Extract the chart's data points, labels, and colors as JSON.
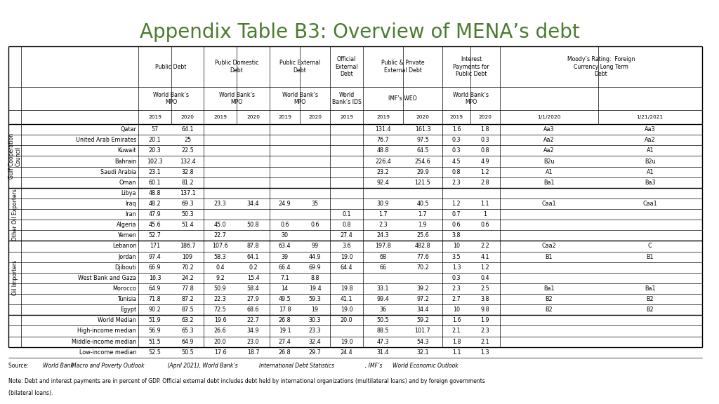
{
  "title": "Appendix Table B3: Overview of MENA’s debt",
  "title_color": "#4a7c2f",
  "background_color": "#ffffff",
  "groups": [
    {
      "label": "Gulf Cooperation\nCouncil",
      "rows": [
        {
          "country": "Qatar",
          "pd19": "57",
          "pd20": "64.1",
          "pdd19": "",
          "pdd20": "",
          "ped19": "",
          "ped20": "",
          "oed19": "",
          "ppe19": "131.4",
          "ppe20": "161.3",
          "ip19": "1.6",
          "ip20": "1.8",
          "mr1": "Aa3",
          "mr2": "Aa3"
        },
        {
          "country": "United Arab Emirates",
          "pd19": "20.1",
          "pd20": "25",
          "pdd19": "",
          "pdd20": "",
          "ped19": "",
          "ped20": "",
          "oed19": "",
          "ppe19": "76.7",
          "ppe20": "97.5",
          "ip19": "0.3",
          "ip20": "0.3",
          "mr1": "Aa2",
          "mr2": "Aa2"
        },
        {
          "country": "Kuwait",
          "pd19": "20.3",
          "pd20": "22.5",
          "pdd19": "",
          "pdd20": "",
          "ped19": "",
          "ped20": "",
          "oed19": "",
          "ppe19": "48.8",
          "ppe20": "64.5",
          "ip19": "0.3",
          "ip20": "0.8",
          "mr1": "Aa2",
          "mr2": "A1"
        },
        {
          "country": "Bahrain",
          "pd19": "102.3",
          "pd20": "132.4",
          "pdd19": "",
          "pdd20": "",
          "ped19": "",
          "ped20": "",
          "oed19": "",
          "ppe19": "226.4",
          "ppe20": "254.6",
          "ip19": "4.5",
          "ip20": "4.9",
          "mr1": "B2u",
          "mr2": "B2u"
        },
        {
          "country": "Saudi Arabia",
          "pd19": "23.1",
          "pd20": "32.8",
          "pdd19": "",
          "pdd20": "",
          "ped19": "",
          "ped20": "",
          "oed19": "",
          "ppe19": "23.2",
          "ppe20": "29.9",
          "ip19": "0.8",
          "ip20": "1.2",
          "mr1": "A1",
          "mr2": "A1"
        },
        {
          "country": "Oman",
          "pd19": "60.1",
          "pd20": "81.2",
          "pdd19": "",
          "pdd20": "",
          "ped19": "",
          "ped20": "",
          "oed19": "",
          "ppe19": "92.4",
          "ppe20": "121.5",
          "ip19": "2.3",
          "ip20": "2.8",
          "mr1": "Ba1",
          "mr2": "Ba3"
        }
      ]
    },
    {
      "label": "Other Oil Exporters",
      "rows": [
        {
          "country": "Libya",
          "pd19": "48.8",
          "pd20": "137.1",
          "pdd19": "",
          "pdd20": "",
          "ped19": "",
          "ped20": "",
          "oed19": "",
          "ppe19": "",
          "ppe20": "",
          "ip19": "",
          "ip20": "",
          "mr1": "",
          "mr2": ""
        },
        {
          "country": "Iraq",
          "pd19": "48.2",
          "pd20": "69.3",
          "pdd19": "23.3",
          "pdd20": "34.4",
          "ped19": "24.9",
          "ped20": "35",
          "oed19": "",
          "ppe19": "30.9",
          "ppe20": "40.5",
          "ip19": "1.2",
          "ip20": "1.1",
          "mr1": "Caa1",
          "mr2": "Caa1"
        },
        {
          "country": "Iran",
          "pd19": "47.9",
          "pd20": "50.3",
          "pdd19": "",
          "pdd20": "",
          "ped19": "",
          "ped20": "",
          "oed19": "0.1",
          "ppe19": "1.7",
          "ppe20": "1.7",
          "ip19": "0.7",
          "ip20": "1",
          "mr1": "",
          "mr2": ""
        },
        {
          "country": "Algeria",
          "pd19": "45.6",
          "pd20": "51.4",
          "pdd19": "45.0",
          "pdd20": "50.8",
          "ped19": "0.6",
          "ped20": "0.6",
          "oed19": "0.8",
          "ppe19": "2.3",
          "ppe20": "1.9",
          "ip19": "0.6",
          "ip20": "0.6",
          "mr1": "",
          "mr2": ""
        },
        {
          "country": "Yemen",
          "pd19": "52.7",
          "pd20": "",
          "pdd19": "22.7",
          "pdd20": "",
          "ped19": "30",
          "ped20": "",
          "oed19": "27.4",
          "ppe19": "24.3",
          "ppe20": "25.6",
          "ip19": "3.8",
          "ip20": "",
          "mr1": "",
          "mr2": ""
        }
      ]
    },
    {
      "label": "Oil Importers",
      "rows": [
        {
          "country": "Lebanon",
          "pd19": "171",
          "pd20": "186.7",
          "pdd19": "107.6",
          "pdd20": "87.8",
          "ped19": "63.4",
          "ped20": "99",
          "oed19": "3.6",
          "ppe19": "197.8",
          "ppe20": "482.8",
          "ip19": "10",
          "ip20": "2.2",
          "mr1": "Caa2",
          "mr2": "C"
        },
        {
          "country": "Jordan",
          "pd19": "97.4",
          "pd20": "109",
          "pdd19": "58.3",
          "pdd20": "64.1",
          "ped19": "39",
          "ped20": "44.9",
          "oed19": "19.0",
          "ppe19": "68",
          "ppe20": "77.6",
          "ip19": "3.5",
          "ip20": "4.1",
          "mr1": "B1",
          "mr2": "B1"
        },
        {
          "country": "Djibouti",
          "pd19": "66.9",
          "pd20": "70.2",
          "pdd19": "0.4",
          "pdd20": "0.2",
          "ped19": "66.4",
          "ped20": "69.9",
          "oed19": "64.4",
          "ppe19": "66",
          "ppe20": "70.2",
          "ip19": "1.3",
          "ip20": "1.2",
          "mr1": "",
          "mr2": ""
        },
        {
          "country": "West Bank and Gaza",
          "pd19": "16.3",
          "pd20": "24.2",
          "pdd19": "9.2",
          "pdd20": "15.4",
          "ped19": "7.1",
          "ped20": "8.8",
          "oed19": "",
          "ppe19": "",
          "ppe20": "",
          "ip19": "0.3",
          "ip20": "0.4",
          "mr1": "",
          "mr2": ""
        },
        {
          "country": "Morocco",
          "pd19": "64.9",
          "pd20": "77.8",
          "pdd19": "50.9",
          "pdd20": "58.4",
          "ped19": "14",
          "ped20": "19.4",
          "oed19": "19.8",
          "ppe19": "33.1",
          "ppe20": "39.2",
          "ip19": "2.3",
          "ip20": "2.5",
          "mr1": "Ba1",
          "mr2": "Ba1"
        },
        {
          "country": "Tunisia",
          "pd19": "71.8",
          "pd20": "87.2",
          "pdd19": "22.3",
          "pdd20": "27.9",
          "ped19": "49.5",
          "ped20": "59.3",
          "oed19": "41.1",
          "ppe19": "99.4",
          "ppe20": "97.2",
          "ip19": "2.7",
          "ip20": "3.8",
          "mr1": "B2",
          "mr2": "B2"
        },
        {
          "country": "Egypt",
          "pd19": "90.2",
          "pd20": "87.5",
          "pdd19": "72.5",
          "pdd20": "68.6",
          "ped19": "17.8",
          "ped20": "19",
          "oed19": "19.0",
          "ppe19": "36",
          "ppe20": "34.4",
          "ip19": "10",
          "ip20": "9.8",
          "mr1": "B2",
          "mr2": "B2"
        }
      ]
    },
    {
      "label": "",
      "rows": [
        {
          "country": "World Median",
          "pd19": "51.9",
          "pd20": "63.2",
          "pdd19": "19.6",
          "pdd20": "22.7",
          "ped19": "26.8",
          "ped20": "30.3",
          "oed19": "20.0",
          "ppe19": "50.5",
          "ppe20": "59.2",
          "ip19": "1.6",
          "ip20": "1.9",
          "mr1": "",
          "mr2": ""
        },
        {
          "country": "High-income median",
          "pd19": "56.9",
          "pd20": "65.3",
          "pdd19": "26.6",
          "pdd20": "34.9",
          "ped19": "19.1",
          "ped20": "23.3",
          "oed19": "",
          "ppe19": "88.5",
          "ppe20": "101.7",
          "ip19": "2.1",
          "ip20": "2.3",
          "mr1": "",
          "mr2": ""
        },
        {
          "country": "Middle-income median",
          "pd19": "51.5",
          "pd20": "64.9",
          "pdd19": "20.0",
          "pdd20": "23.0",
          "ped19": "27.4",
          "ped20": "32.4",
          "oed19": "19.0",
          "ppe19": "47.3",
          "ppe20": "54.3",
          "ip19": "1.8",
          "ip20": "2.1",
          "mr1": "",
          "mr2": ""
        },
        {
          "country": "Low-income median",
          "pd19": "52.5",
          "pd20": "50.5",
          "pdd19": "17.6",
          "pdd20": "18.7",
          "ped19": "26.8",
          "ped20": "29.7",
          "oed19": "24.4",
          "ppe19": "31.4",
          "ppe20": "32.1",
          "ip19": "1.1",
          "ip20": "1.3",
          "mr1": "",
          "mr2": ""
        }
      ]
    }
  ],
  "source_normal": "Source: ",
  "source_italic": "World Bank ",
  "source_italicbold": "Macro and Poverty Outlook",
  "source_italic2": " (April 2021), World Bank’s ",
  "source_italicbold2": "International Debt Statistics",
  "source_italic3": ", IMF’s ",
  "source_italicbold3": "World Economic Outlook",
  "note_text": "Note: Debt and interest payments are in percent of GDP. Official external debt includes debt held by international organizations (multilateral loans) and by foreign governments (bilateral loans)."
}
